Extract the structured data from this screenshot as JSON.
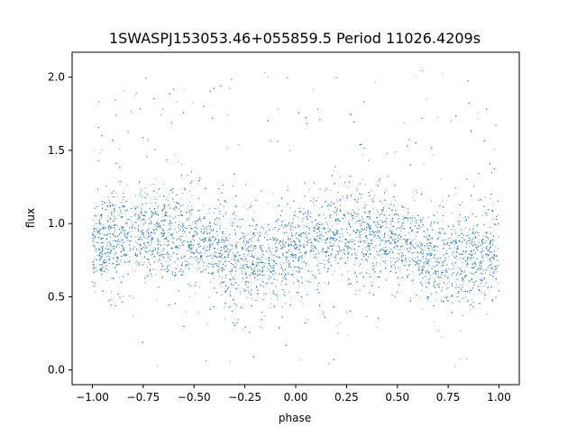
{
  "chart_data": {
    "type": "scatter",
    "title": "1SWASPJ153053.46+055859.5 Period 11026.4209s",
    "xlabel": "phase",
    "ylabel": "flux",
    "xlim": [
      -1.1,
      1.1
    ],
    "ylim": [
      -0.1,
      2.17
    ],
    "xticks": [
      -1.0,
      -0.75,
      -0.5,
      -0.25,
      0.0,
      0.25,
      0.5,
      0.75,
      1.0
    ],
    "xtick_labels": [
      "−1.00",
      "−0.75",
      "−0.50",
      "−0.25",
      "0.00",
      "0.25",
      "0.50",
      "0.75",
      "1.00"
    ],
    "yticks": [
      0.0,
      0.5,
      1.0,
      1.5,
      2.0
    ],
    "ytick_labels": [
      "0.0",
      "0.5",
      "1.0",
      "1.5",
      "2.0"
    ],
    "grid": false,
    "marker_color": "#1f77b4",
    "series": [
      {
        "profile_phase": [
          -1.0,
          -0.875,
          -0.75,
          -0.625,
          -0.5,
          -0.375,
          -0.25,
          -0.125,
          0.0,
          0.125,
          0.25,
          0.375,
          0.5,
          0.625,
          0.75,
          0.875,
          1.0
        ],
        "profile_flux": [
          0.82,
          0.9,
          0.95,
          0.93,
          0.88,
          0.8,
          0.74,
          0.76,
          0.83,
          0.91,
          0.95,
          0.93,
          0.88,
          0.8,
          0.74,
          0.76,
          0.82
        ],
        "scatter_sigma": 0.13
      }
    ]
  }
}
